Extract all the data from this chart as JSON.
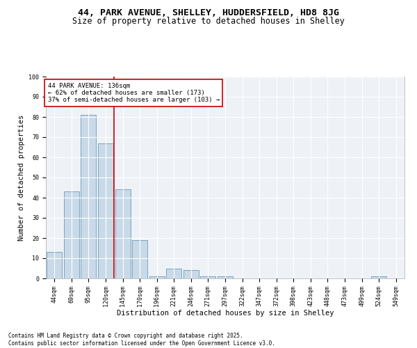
{
  "title_line1": "44, PARK AVENUE, SHELLEY, HUDDERSFIELD, HD8 8JG",
  "title_line2": "Size of property relative to detached houses in Shelley",
  "xlabel": "Distribution of detached houses by size in Shelley",
  "ylabel": "Number of detached properties",
  "categories": [
    "44sqm",
    "69sqm",
    "95sqm",
    "120sqm",
    "145sqm",
    "170sqm",
    "196sqm",
    "221sqm",
    "246sqm",
    "271sqm",
    "297sqm",
    "322sqm",
    "347sqm",
    "372sqm",
    "398sqm",
    "423sqm",
    "448sqm",
    "473sqm",
    "499sqm",
    "524sqm",
    "549sqm"
  ],
  "values": [
    13,
    43,
    81,
    67,
    44,
    19,
    1,
    5,
    4,
    1,
    1,
    0,
    0,
    0,
    0,
    0,
    0,
    0,
    0,
    1,
    0
  ],
  "bar_color": "#c9d9e8",
  "bar_edge_color": "#6699bb",
  "background_color": "#eef2f7",
  "grid_color": "#ffffff",
  "annotation_box_text": "44 PARK AVENUE: 136sqm\n← 62% of detached houses are smaller (173)\n37% of semi-detached houses are larger (103) →",
  "annotation_box_color": "#cc0000",
  "vline_x": 3.5,
  "vline_color": "#cc0000",
  "ylim": [
    0,
    100
  ],
  "footnote": "Contains HM Land Registry data © Crown copyright and database right 2025.\nContains public sector information licensed under the Open Government Licence v3.0.",
  "title_fontsize": 9.5,
  "subtitle_fontsize": 8.5,
  "axis_label_fontsize": 7.5,
  "tick_fontsize": 6,
  "annotation_fontsize": 6.5,
  "footnote_fontsize": 5.5
}
